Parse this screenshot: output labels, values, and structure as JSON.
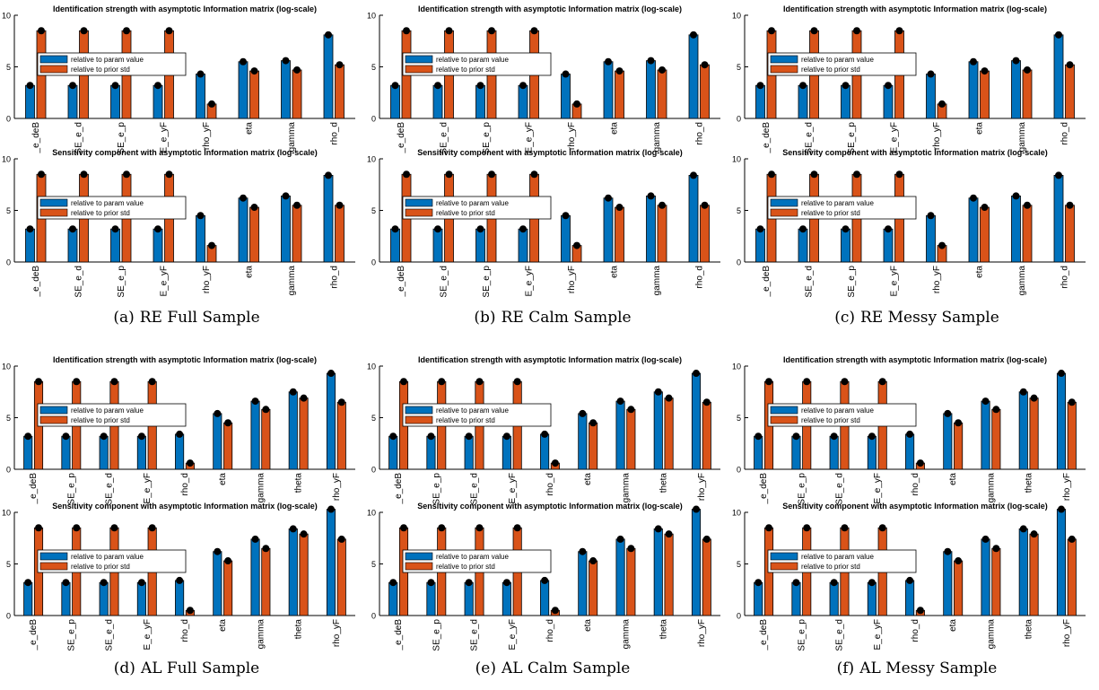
{
  "colors": {
    "param": "#0072BD",
    "prior": "#D95319",
    "marker": "#000000",
    "axis": "#000000"
  },
  "legend": {
    "param_label": "relative to param value",
    "prior_label": "relative to prior std"
  },
  "captions": [
    {
      "letter": "(a)",
      "text": "RE Full Sample"
    },
    {
      "letter": "(b)",
      "text": "RE Calm Sample"
    },
    {
      "letter": "(c)",
      "text": "RE Messy Sample"
    },
    {
      "letter": "(d)",
      "text": "AL Full Sample"
    },
    {
      "letter": "(e)",
      "text": "AL Calm Sample"
    },
    {
      "letter": "(f)",
      "text": "AL Messy Sample"
    }
  ],
  "chart_data": [
    {
      "panel": "a",
      "role": "identification",
      "type": "bar",
      "title": "Identification strength with asymptotic Information matrix (log-scale)",
      "categories": [
        "_e_deB",
        "SE_e_d",
        "SE_e_p",
        "E_e_yF",
        "rho_yF",
        "eta",
        "gamma",
        "rho_d"
      ],
      "series": [
        {
          "name": "relative to param value",
          "values": [
            3.2,
            3.2,
            3.2,
            3.2,
            4.3,
            5.5,
            5.6,
            8.1
          ]
        },
        {
          "name": "relative to prior std",
          "values": [
            8.5,
            8.5,
            8.5,
            8.5,
            1.4,
            4.6,
            4.7,
            5.2
          ]
        }
      ],
      "yticks": [
        0,
        5,
        10
      ],
      "ylim": [
        0,
        10
      ],
      "legend": "left"
    },
    {
      "panel": "a",
      "role": "sensitivity",
      "type": "bar",
      "title": "Sensitivity component with asymptotic Information matrix (log-scale)",
      "categories": [
        "_e_deB",
        "SE_e_d",
        "SE_e_p",
        "E_e_yF",
        "rho_yF",
        "eta",
        "gamma",
        "rho_d"
      ],
      "series": [
        {
          "name": "relative to param value",
          "values": [
            3.2,
            3.2,
            3.2,
            3.2,
            4.5,
            6.2,
            6.4,
            8.4
          ]
        },
        {
          "name": "relative to prior std",
          "values": [
            8.5,
            8.5,
            8.5,
            8.5,
            1.6,
            5.3,
            5.5,
            5.5
          ]
        }
      ],
      "yticks": [
        0,
        5,
        10
      ],
      "ylim": [
        0,
        10
      ],
      "legend": "left"
    },
    {
      "panel": "b",
      "role": "identification",
      "type": "bar",
      "title": "Identification strength with asymptotic Information matrix (log-scale)",
      "categories": [
        "_e_deB",
        "SE_e_d",
        "SE_e_p",
        "E_e_yF",
        "rho_yF",
        "eta",
        "gamma",
        "rho_d"
      ],
      "series": [
        {
          "name": "relative to param value",
          "values": [
            3.2,
            3.2,
            3.2,
            3.2,
            4.3,
            5.5,
            5.6,
            8.1
          ]
        },
        {
          "name": "relative to prior std",
          "values": [
            8.5,
            8.5,
            8.5,
            8.5,
            1.4,
            4.6,
            4.7,
            5.2
          ]
        }
      ],
      "yticks": [
        0,
        5,
        10
      ],
      "ylim": [
        0,
        10
      ],
      "legend": "left"
    },
    {
      "panel": "b",
      "role": "sensitivity",
      "type": "bar",
      "title": "Sensitivity component with asymptotic Information matrix (log-scale)",
      "categories": [
        "_e_deB",
        "SE_e_d",
        "SE_e_p",
        "E_e_yF",
        "rho_yF",
        "eta",
        "gamma",
        "rho_d"
      ],
      "series": [
        {
          "name": "relative to param value",
          "values": [
            3.2,
            3.2,
            3.2,
            3.2,
            4.5,
            6.2,
            6.4,
            8.4
          ]
        },
        {
          "name": "relative to prior std",
          "values": [
            8.5,
            8.5,
            8.5,
            8.5,
            1.6,
            5.3,
            5.5,
            5.5
          ]
        }
      ],
      "yticks": [
        0,
        5,
        10
      ],
      "ylim": [
        0,
        10
      ],
      "legend": "left"
    },
    {
      "panel": "c",
      "role": "identification",
      "type": "bar",
      "title": "Identification strength with asymptotic Information matrix (log-scale)",
      "categories": [
        "_e_deB",
        "SE_e_d",
        "SE_e_p",
        "E_e_yF",
        "rho_yF",
        "eta",
        "gamma",
        "rho_d"
      ],
      "series": [
        {
          "name": "relative to param value",
          "values": [
            3.2,
            3.2,
            3.2,
            3.2,
            4.3,
            5.5,
            5.6,
            8.1
          ]
        },
        {
          "name": "relative to prior std",
          "values": [
            8.5,
            8.5,
            8.5,
            8.5,
            1.4,
            4.6,
            4.7,
            5.2
          ]
        }
      ],
      "yticks": [
        0,
        5,
        10
      ],
      "ylim": [
        0,
        10
      ],
      "legend": "left"
    },
    {
      "panel": "c",
      "role": "sensitivity",
      "type": "bar",
      "title": "Sensitivity component with asymptotic Information matrix (log-scale)",
      "categories": [
        "_e_deB",
        "SE_e_d",
        "SE_e_p",
        "E_e_yF",
        "rho_yF",
        "eta",
        "gamma",
        "rho_d"
      ],
      "series": [
        {
          "name": "relative to param value",
          "values": [
            3.2,
            3.2,
            3.2,
            3.2,
            4.5,
            6.2,
            6.4,
            8.4
          ]
        },
        {
          "name": "relative to prior std",
          "values": [
            8.5,
            8.5,
            8.5,
            8.5,
            1.6,
            5.3,
            5.5,
            5.5
          ]
        }
      ],
      "yticks": [
        0,
        5,
        10
      ],
      "ylim": [
        0,
        10
      ],
      "legend": "left"
    },
    {
      "panel": "d",
      "role": "identification",
      "type": "bar",
      "title": "Identification strength with asymptotic Information matrix (log-scale)",
      "categories": [
        "_e_deB",
        "SE_e_p",
        "SE_e_d",
        "E_e_yF",
        "rho_d",
        "eta",
        "gamma",
        "theta",
        "rho_yF"
      ],
      "series": [
        {
          "name": "relative to param value",
          "values": [
            3.2,
            3.2,
            3.2,
            3.2,
            3.4,
            5.4,
            6.6,
            7.5,
            9.3
          ]
        },
        {
          "name": "relative to prior std",
          "values": [
            8.5,
            8.5,
            8.5,
            8.5,
            0.6,
            4.5,
            5.8,
            6.9,
            6.5
          ]
        }
      ],
      "yticks": [
        0,
        5,
        10
      ],
      "ylim": [
        0,
        10
      ],
      "legend": "left"
    },
    {
      "panel": "d",
      "role": "sensitivity",
      "type": "bar",
      "title": "Sensitivity component with asymptotic Information matrix (log-scale)",
      "categories": [
        "_e_deB",
        "SE_e_p",
        "SE_e_d",
        "E_e_yF",
        "rho_d",
        "eta",
        "gamma",
        "theta",
        "rho_yF"
      ],
      "series": [
        {
          "name": "relative to param value",
          "values": [
            3.2,
            3.2,
            3.2,
            3.2,
            3.4,
            6.2,
            7.4,
            8.4,
            10.3
          ]
        },
        {
          "name": "relative to prior std",
          "values": [
            8.5,
            8.5,
            8.5,
            8.5,
            0.5,
            5.3,
            6.5,
            7.9,
            7.4
          ]
        }
      ],
      "yticks": [
        0,
        5,
        10
      ],
      "ylim": [
        0,
        10
      ],
      "legend": "left"
    },
    {
      "panel": "e",
      "role": "identification",
      "type": "bar",
      "title": "Identification strength with asymptotic Information matrix (log-scale)",
      "categories": [
        "_e_deB",
        "SE_e_p",
        "SE_e_d",
        "E_e_yF",
        "rho_d",
        "eta",
        "gamma",
        "theta",
        "rho_yF"
      ],
      "series": [
        {
          "name": "relative to param value",
          "values": [
            3.2,
            3.2,
            3.2,
            3.2,
            3.4,
            5.4,
            6.6,
            7.5,
            9.3
          ]
        },
        {
          "name": "relative to prior std",
          "values": [
            8.5,
            8.5,
            8.5,
            8.5,
            0.6,
            4.5,
            5.8,
            6.9,
            6.5
          ]
        }
      ],
      "yticks": [
        0,
        5,
        10
      ],
      "ylim": [
        0,
        10
      ],
      "legend": "left"
    },
    {
      "panel": "e",
      "role": "sensitivity",
      "type": "bar",
      "title": "Sensitivity component with asymptotic Information matrix (log-scale)",
      "categories": [
        "_e_deB",
        "SE_e_p",
        "SE_e_d",
        "E_e_yF",
        "rho_d",
        "eta",
        "gamma",
        "theta",
        "rho_yF"
      ],
      "series": [
        {
          "name": "relative to param value",
          "values": [
            3.2,
            3.2,
            3.2,
            3.2,
            3.4,
            6.2,
            7.4,
            8.4,
            10.3
          ]
        },
        {
          "name": "relative to prior std",
          "values": [
            8.5,
            8.5,
            8.5,
            8.5,
            0.5,
            5.3,
            6.5,
            7.9,
            7.4
          ]
        }
      ],
      "yticks": [
        0,
        5,
        10
      ],
      "ylim": [
        0,
        10
      ],
      "legend": "left"
    },
    {
      "panel": "f",
      "role": "identification",
      "type": "bar",
      "title": "Identification strength with asymptotic Information matrix (log-scale)",
      "categories": [
        "_e_deB",
        "SE_e_p",
        "SE_e_d",
        "E_e_yF",
        "rho_d",
        "eta",
        "gamma",
        "theta",
        "rho_yF"
      ],
      "series": [
        {
          "name": "relative to param value",
          "values": [
            3.2,
            3.2,
            3.2,
            3.2,
            3.4,
            5.4,
            6.6,
            7.5,
            9.3
          ]
        },
        {
          "name": "relative to prior std",
          "values": [
            8.5,
            8.5,
            8.5,
            8.5,
            0.6,
            4.5,
            5.8,
            6.9,
            6.5
          ]
        }
      ],
      "yticks": [
        0,
        5,
        10
      ],
      "ylim": [
        0,
        10
      ],
      "legend": "left"
    },
    {
      "panel": "f",
      "role": "sensitivity",
      "type": "bar",
      "title": "Sensitivity component with asymptotic Information matrix (log-scale)",
      "categories": [
        "_e_deB",
        "SE_e_p",
        "SE_e_d",
        "E_e_yF",
        "rho_d",
        "eta",
        "gamma",
        "theta",
        "rho_yF"
      ],
      "series": [
        {
          "name": "relative to param value",
          "values": [
            3.2,
            3.2,
            3.2,
            3.2,
            3.4,
            6.2,
            7.4,
            8.4,
            10.3
          ]
        },
        {
          "name": "relative to prior std",
          "values": [
            8.5,
            8.5,
            8.5,
            8.5,
            0.5,
            5.3,
            6.5,
            7.9,
            7.4
          ]
        }
      ],
      "yticks": [
        0,
        5,
        10
      ],
      "ylim": [
        0,
        10
      ],
      "legend": "left"
    }
  ]
}
